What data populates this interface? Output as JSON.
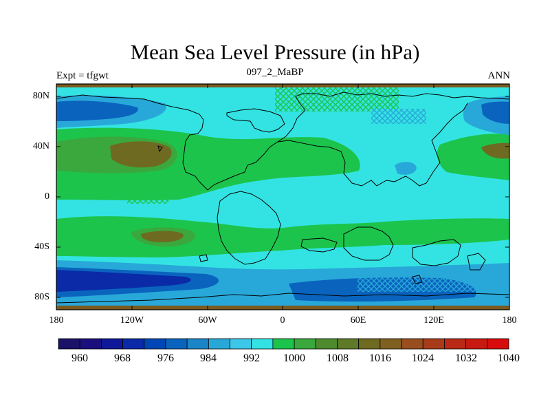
{
  "title": "Mean Sea Level Pressure (in hPa)",
  "subtitle_left": "Expt = tfgwt",
  "subtitle_center": "097_2_MaBP",
  "subtitle_right": "ANN",
  "lat_labels": [
    "80N",
    "40N",
    "0",
    "40S",
    "80S"
  ],
  "lon_labels": [
    "180",
    "120W",
    "60W",
    "0",
    "60E",
    "120E",
    "180"
  ],
  "colorbar": {
    "label_values": [
      "960",
      "968",
      "976",
      "984",
      "992",
      "1000",
      "1008",
      "1016",
      "1024",
      "1032",
      "1040"
    ],
    "colors": [
      "#1a1268",
      "#1b0f7e",
      "#10189a",
      "#0a2aa8",
      "#0046b4",
      "#0a64be",
      "#1a86c8",
      "#28a8d8",
      "#3cc8e8",
      "#33e3e3",
      "#1cc44c",
      "#3aa83c",
      "#4e8a2e",
      "#5e7a28",
      "#6e6a22",
      "#806020",
      "#984e1e",
      "#a83c1a",
      "#b82a16",
      "#c81812",
      "#d80c0c"
    ]
  },
  "field_colors": {
    "ocean_default": "#33e3e3",
    "high_1000": "#1cc44c",
    "high_1008": "#3aa83c",
    "high_1016": "#6e6a22",
    "low_992": "#28a8d8",
    "low_984": "#0a64be",
    "low_976": "#0a2aa8",
    "polar_cap": "#7a5a1e"
  }
}
